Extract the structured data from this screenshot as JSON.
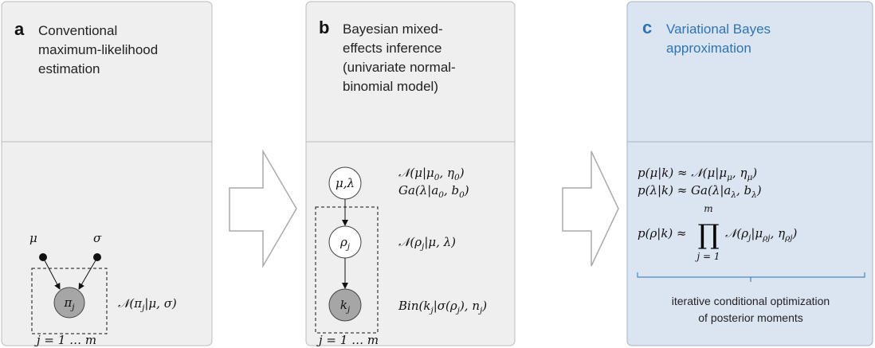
{
  "panels": [
    {
      "letter": "a",
      "title": [
        "Conventional",
        "maximum-likelihood",
        "estimation"
      ],
      "params": [
        "μ",
        "σ"
      ],
      "node": [
        {
          "t": "π"
        },
        {
          "s": "j"
        }
      ],
      "formula": [
        {
          "t": "𝒩(π"
        },
        {
          "s": "j"
        },
        {
          "t": "|μ, σ)"
        }
      ],
      "plate": "j = 1 … m"
    },
    {
      "letter": "b",
      "title": [
        "Bayesian mixed-",
        "effects inference",
        "(univariate normal-",
        "binomial model)"
      ],
      "nodes": [
        [
          {
            "t": "μ,λ"
          }
        ],
        [
          {
            "t": "ρ"
          },
          {
            "s": "j"
          }
        ],
        [
          {
            "t": "k"
          },
          {
            "s": "j"
          }
        ]
      ],
      "formulas": [
        [
          {
            "t": "𝒩(μ|μ"
          },
          {
            "s": "0"
          },
          {
            "t": ", η"
          },
          {
            "s": "0"
          },
          {
            "t": ")"
          }
        ],
        [
          {
            "t": "Ga(λ|a"
          },
          {
            "s": "0"
          },
          {
            "t": ", b"
          },
          {
            "s": "0"
          },
          {
            "t": ")"
          }
        ],
        [
          {
            "t": "𝒩(ρ"
          },
          {
            "s": "j"
          },
          {
            "t": "|μ, λ)"
          }
        ],
        [
          {
            "t": "Bin(k"
          },
          {
            "s": "j"
          },
          {
            "t": "|σ(ρ"
          },
          {
            "s": "j"
          },
          {
            "t": "), n"
          },
          {
            "s": "j"
          },
          {
            "t": ")"
          }
        ]
      ],
      "plate": "j = 1 … m"
    },
    {
      "letter": "c",
      "title": [
        "Variational Bayes",
        "approximation"
      ],
      "formulas": [
        [
          {
            "t": "p(μ|k) ≈ 𝒩(μ|μ"
          },
          {
            "s": "μ"
          },
          {
            "t": ", η"
          },
          {
            "s": "μ"
          },
          {
            "t": ")"
          }
        ],
        [
          {
            "t": "p(λ|k) ≈ Ga(λ|a"
          },
          {
            "s": "λ"
          },
          {
            "t": ", b"
          },
          {
            "s": "λ"
          },
          {
            "t": ")"
          }
        ]
      ],
      "product": {
        "lhs": [
          {
            "t": "p(ρ|k) ≈"
          }
        ],
        "symbol": "∏",
        "upper": "m",
        "lower": "j = 1",
        "rhs": [
          {
            "t": "𝒩(ρ"
          },
          {
            "s": "j"
          },
          {
            "t": "|μ"
          },
          {
            "s": "ρj"
          },
          {
            "t": ", η"
          },
          {
            "s": "ρj"
          },
          {
            "t": ")"
          }
        ]
      },
      "note": [
        "iterative conditional optimization",
        "of posterior moments"
      ]
    }
  ]
}
